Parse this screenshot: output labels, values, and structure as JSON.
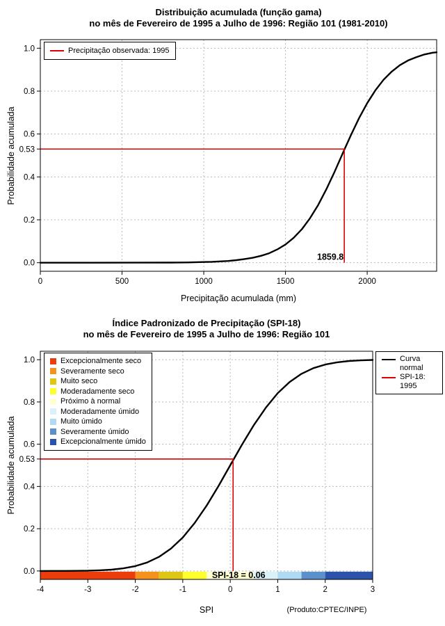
{
  "accent_red": "#DC0000",
  "chart_data": [
    {
      "type": "line",
      "id": "gamma-cdf",
      "title": "Distribuição acumulada (função gama)",
      "subtitle": "no mês de Fevereiro de 1995 a Julho de 1996: Região 101 (1981-2010)",
      "xlabel": "Precipitação acumulada (mm)",
      "ylabel": "Probabilidade acumulada",
      "xlim": [
        0,
        2425
      ],
      "ylim": [
        -0.04,
        1.04
      ],
      "xticks": [
        0,
        500,
        1000,
        1500,
        2000
      ],
      "ytick_values": [
        0,
        0.2,
        0.4,
        0.6,
        0.8,
        1.0
      ],
      "ytick_labels": [
        "0.0",
        "0.2",
        "0.4",
        "0.6",
        "0.8",
        "1.0"
      ],
      "special_ytick": {
        "value": 0.53,
        "label": "0.53"
      },
      "grid": true,
      "legend": [
        {
          "label": "Precipitação observada: 1995",
          "color": "#DC0000"
        }
      ],
      "curve": {
        "name": "gamma-cdf",
        "color": "#000000",
        "points": [
          [
            0,
            0
          ],
          [
            300,
            0
          ],
          [
            600,
            0.0002
          ],
          [
            800,
            0.0007
          ],
          [
            900,
            0.0013
          ],
          [
            1000,
            0.003
          ],
          [
            1050,
            0.004
          ],
          [
            1100,
            0.006
          ],
          [
            1150,
            0.008
          ],
          [
            1200,
            0.012
          ],
          [
            1250,
            0.017
          ],
          [
            1300,
            0.023
          ],
          [
            1350,
            0.032
          ],
          [
            1400,
            0.044
          ],
          [
            1450,
            0.062
          ],
          [
            1500,
            0.085
          ],
          [
            1550,
            0.116
          ],
          [
            1600,
            0.156
          ],
          [
            1650,
            0.207
          ],
          [
            1700,
            0.269
          ],
          [
            1750,
            0.342
          ],
          [
            1800,
            0.423
          ],
          [
            1850,
            0.509
          ],
          [
            1859.8,
            0.526
          ],
          [
            1900,
            0.594
          ],
          [
            1950,
            0.674
          ],
          [
            2000,
            0.744
          ],
          [
            2050,
            0.804
          ],
          [
            2100,
            0.853
          ],
          [
            2150,
            0.891
          ],
          [
            2200,
            0.921
          ],
          [
            2250,
            0.943
          ],
          [
            2300,
            0.958
          ],
          [
            2350,
            0.971
          ],
          [
            2400,
            0.979
          ],
          [
            2425,
            0.981
          ]
        ]
      },
      "reference": {
        "x": 1859.8,
        "y": 0.53,
        "color": "#DC0000",
        "x_label": "1859.8"
      }
    },
    {
      "type": "line",
      "id": "spi-cdf",
      "title": "Índice Padronizado de Precipitação (SPI-18)",
      "subtitle": "no mês de Fevereiro de 1995 a Julho de 1996: Região 101",
      "xlabel": "SPI",
      "ylabel": "Probabilidade acumulada",
      "footnote": "(Produto:CPTEC/INPE)",
      "xlim": [
        -4,
        3
      ],
      "ylim": [
        -0.04,
        1.04
      ],
      "xticks": [
        -4,
        -3,
        -2,
        -1,
        0,
        1,
        2,
        3
      ],
      "ytick_values": [
        0,
        0.2,
        0.4,
        0.6,
        0.8,
        1.0
      ],
      "ytick_labels": [
        "0.0",
        "0.2",
        "0.4",
        "0.6",
        "0.8",
        "1.0"
      ],
      "special_ytick": {
        "value": 0.53,
        "label": "0.53"
      },
      "grid": true,
      "categories_legend": [
        {
          "label": "Excepcionalmente seco",
          "color": "#EB3D0C"
        },
        {
          "label": "Severamente seco",
          "color": "#F5921E"
        },
        {
          "label": "Muito seco",
          "color": "#DFC615"
        },
        {
          "label": "Moderadamente seco",
          "color": "#FFFF2E"
        },
        {
          "label": "Próximo à normal",
          "color": "#FFFFD2"
        },
        {
          "label": "Moderadamente úmido",
          "color": "#DBF1FA"
        },
        {
          "label": "Muito úmido",
          "color": "#AEDAF4"
        },
        {
          "label": "Severamente úmido",
          "color": "#5C90CB"
        },
        {
          "label": "Excepcionalmente úmido",
          "color": "#2B53AB"
        }
      ],
      "line_legend": [
        {
          "label": "Curva normal",
          "color": "#000000"
        },
        {
          "label": "SPI-18: 1995",
          "color": "#DC0000"
        }
      ],
      "curve": {
        "name": "normal-cdf",
        "color": "#000000",
        "points": [
          [
            -4,
            0.0
          ],
          [
            -3.75,
            0.0001
          ],
          [
            -3.5,
            0.0002
          ],
          [
            -3.25,
            0.0006
          ],
          [
            -3,
            0.0013
          ],
          [
            -2.75,
            0.003
          ],
          [
            -2.5,
            0.0062
          ],
          [
            -2.25,
            0.0122
          ],
          [
            -2,
            0.0228
          ],
          [
            -1.75,
            0.0401
          ],
          [
            -1.5,
            0.0668
          ],
          [
            -1.25,
            0.1056
          ],
          [
            -1,
            0.1587
          ],
          [
            -0.75,
            0.2266
          ],
          [
            -0.5,
            0.3085
          ],
          [
            -0.25,
            0.4013
          ],
          [
            0,
            0.5
          ],
          [
            0.25,
            0.5987
          ],
          [
            0.5,
            0.6915
          ],
          [
            0.75,
            0.7734
          ],
          [
            1,
            0.8413
          ],
          [
            1.25,
            0.8944
          ],
          [
            1.5,
            0.9332
          ],
          [
            1.75,
            0.9599
          ],
          [
            2,
            0.9772
          ],
          [
            2.25,
            0.9878
          ],
          [
            2.5,
            0.9938
          ],
          [
            2.75,
            0.997
          ],
          [
            3,
            0.9987
          ]
        ]
      },
      "reference": {
        "x": 0.06,
        "y": 0.53,
        "color": "#DC0000",
        "label": "SPI-18 = 0.06"
      },
      "colorbar": [
        {
          "from": -4,
          "to": -2,
          "color": "#EB3D0C"
        },
        {
          "from": -2,
          "to": -1.5,
          "color": "#F5921E"
        },
        {
          "from": -1.5,
          "to": -1,
          "color": "#DFC615"
        },
        {
          "from": -1,
          "to": -0.5,
          "color": "#FFFF2E"
        },
        {
          "from": -0.5,
          "to": 0.5,
          "color": "#FFFFD2"
        },
        {
          "from": 0.5,
          "to": 1,
          "color": "#DBF1FA"
        },
        {
          "from": 1,
          "to": 1.5,
          "color": "#AEDAF4"
        },
        {
          "from": 1.5,
          "to": 2,
          "color": "#5C90CB"
        },
        {
          "from": 2,
          "to": 3,
          "color": "#2B53AB"
        }
      ]
    }
  ]
}
